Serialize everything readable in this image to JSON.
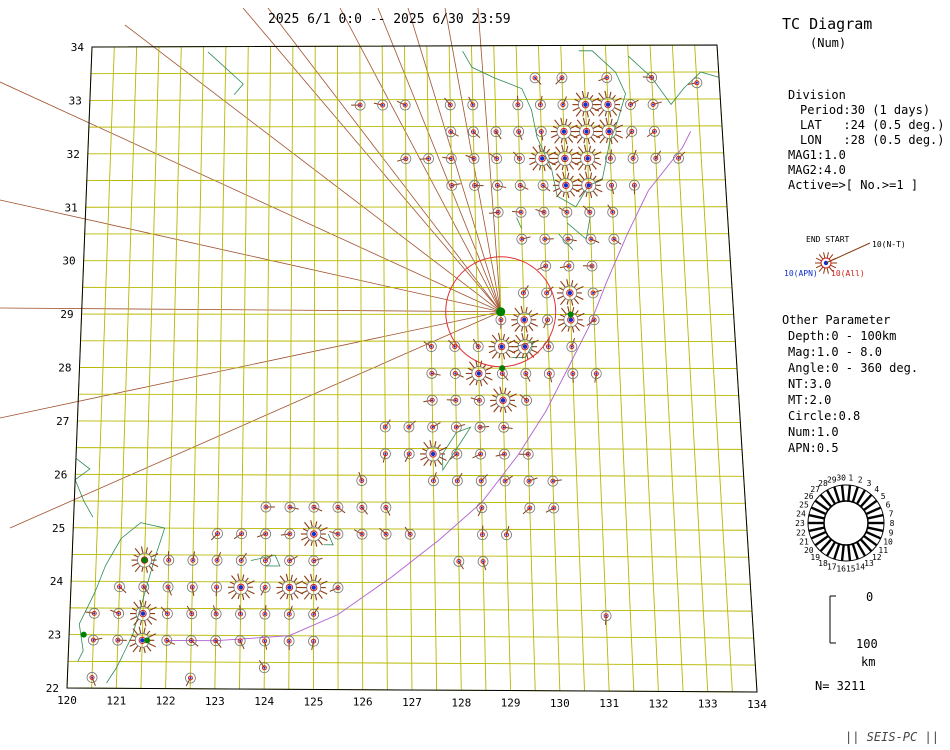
{
  "header": {
    "period_title": "2025 6/1 0:0 -- 2025 6/30 23:59",
    "diagram_title": "TC Diagram",
    "diagram_subtitle": "(Num)"
  },
  "division": {
    "title": "Division",
    "period": "Period:30 (1 days)",
    "lat": "LAT   :24 (0.5 deg.)",
    "lon": "LON   :28 (0.5 deg.)",
    "mag1": "MAG1:1.0",
    "mag2": "MAG2:4.0",
    "active": "Active=>[ No.>=1 ]"
  },
  "legend_symbol": {
    "end_start": "END START",
    "nt": "10(N-T)",
    "apn": "10(APN)",
    "all": "10(All)"
  },
  "other_parameter": {
    "title": "Other Parameter",
    "depth": "Depth:0 - 100km",
    "mag": "Mag:1.0 - 8.0",
    "angle": "Angle:0 - 360 deg.",
    "nt": "NT:3.0",
    "mt": "MT:2.0",
    "circle": "Circle:0.8",
    "num": "Num:1.0",
    "apn": "APN:0.5"
  },
  "day_wheel": {
    "labels": [
      "1",
      "2",
      "3",
      "4",
      "5",
      "6",
      "7",
      "8",
      "9",
      "10",
      "11",
      "12",
      "13",
      "14",
      "15",
      "16",
      "17",
      "18",
      "19",
      "20",
      "21",
      "22",
      "23",
      "24",
      "25",
      "26",
      "27",
      "28",
      "29",
      "30"
    ]
  },
  "depth_scale": {
    "top": "0",
    "bottom": "100",
    "unit": "km"
  },
  "count": "N= 3211",
  "footer": "|| SEIS-PC ||",
  "map": {
    "lat_labels": [
      "22",
      "23",
      "24",
      "25",
      "26",
      "27",
      "28",
      "29",
      "30",
      "31",
      "32",
      "33",
      "34"
    ],
    "lon_labels": [
      "120",
      "121",
      "122",
      "123",
      "124",
      "125",
      "126",
      "127",
      "128",
      "129",
      "130",
      "131",
      "132",
      "133",
      "134"
    ],
    "colors": {
      "grid": "#b8b800",
      "coast": "#2e8b57",
      "trench": "#b060d0",
      "ray": "#a0522d",
      "spike": "#8b3a0f",
      "ring": "#d02020",
      "dot": "#1030d0",
      "station": "#008000"
    }
  }
}
